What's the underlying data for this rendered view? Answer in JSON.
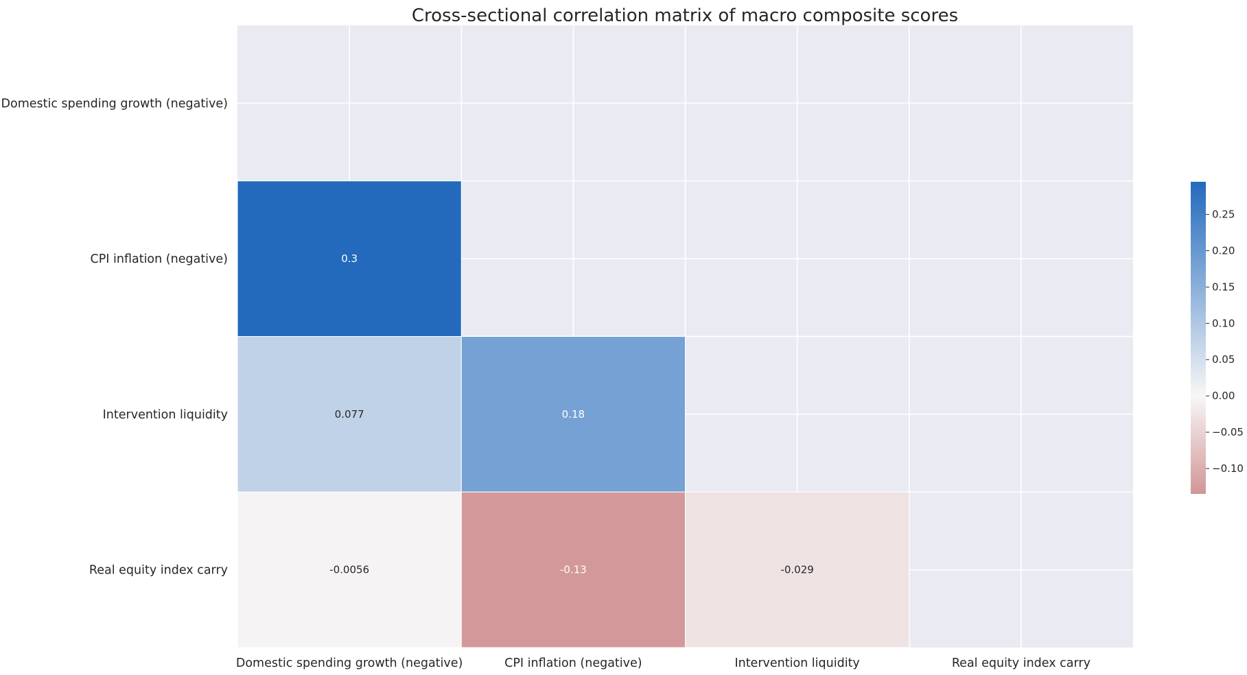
{
  "chart_data": {
    "type": "heatmap",
    "title": "Cross-sectional correlation matrix of macro composite scores",
    "rows": [
      "Domestic spending growth (negative)",
      "CPI inflation (negative)",
      "Intervention liquidity",
      "Real equity index carry"
    ],
    "columns": [
      "Domestic spending growth (negative)",
      "CPI inflation (negative)",
      "Intervention liquidity",
      "Real equity index carry"
    ],
    "mask": "upper-triangle-including-diagonal",
    "cells": [
      {
        "row": 1,
        "col": 0,
        "value": 0.3,
        "label": "0.3"
      },
      {
        "row": 2,
        "col": 0,
        "value": 0.077,
        "label": "0.077"
      },
      {
        "row": 2,
        "col": 1,
        "value": 0.18,
        "label": "0.18"
      },
      {
        "row": 3,
        "col": 0,
        "value": -0.0056,
        "label": "-0.0056"
      },
      {
        "row": 3,
        "col": 1,
        "value": -0.13,
        "label": "-0.13"
      },
      {
        "row": 3,
        "col": 2,
        "value": -0.029,
        "label": "-0.029"
      }
    ],
    "colorbar": {
      "vmin": -0.135,
      "vmax": 0.295,
      "ticks": [
        -0.1,
        -0.05,
        0.0,
        0.05,
        0.1,
        0.15,
        0.2,
        0.25
      ],
      "tick_labels": [
        "−0.10",
        "−0.05",
        "0.00",
        "0.05",
        "0.10",
        "0.15",
        "0.20",
        "0.25"
      ],
      "colormap": "diverging-red-white-blue",
      "colors": {
        "negative_end": "#d29596",
        "center": "#f7f7f7",
        "positive_end": "#236abd"
      }
    },
    "background": "#eaeaf2",
    "grid": true
  }
}
